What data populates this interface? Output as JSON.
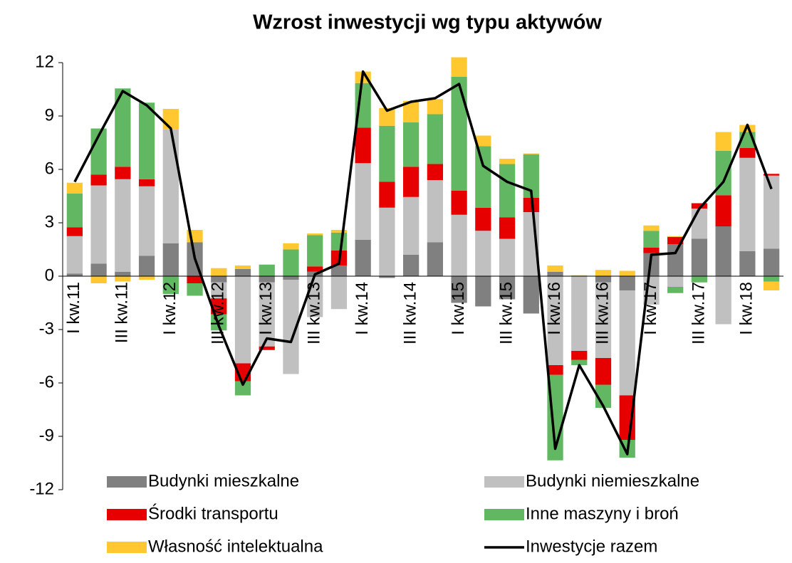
{
  "chart_data": {
    "type": "stacked_bar_line",
    "title": "Wzrost inwestycji wg typu aktywów",
    "categories": [
      "I kw.11",
      null,
      "III kw.11",
      null,
      "I kw.12",
      null,
      "III kw.12",
      null,
      "I kw.13",
      null,
      "III kw.13",
      null,
      "I kw.14",
      null,
      "III kw.14",
      null,
      "I kw.15",
      null,
      "III kw.15",
      null,
      "I kw.16",
      null,
      "III kw.16",
      null,
      "I kw.17",
      null,
      "III kw.17",
      null,
      "I kw.18",
      null
    ],
    "series": [
      {
        "name": "Budynki mieszkalne",
        "color": "#808080",
        "values": [
          0.15,
          0.7,
          0.25,
          1.15,
          1.85,
          1.9,
          -0.35,
          0.4,
          -0.35,
          -0.2,
          0.25,
          0.6,
          2.05,
          -0.1,
          1.2,
          1.9,
          -1.5,
          -1.7,
          -1.3,
          -2.1,
          0.25,
          0,
          -0.35,
          -0.8,
          1.3,
          1.8,
          2.1,
          2.8,
          1.4,
          1.55
        ]
      },
      {
        "name": "Budynki niemieszkalne",
        "color": "#c0c0c0",
        "values": [
          2.1,
          4.4,
          5.2,
          3.9,
          6.4,
          0,
          -0.9,
          -4.9,
          -3.6,
          -5.3,
          -2.3,
          -1.85,
          4.3,
          3.85,
          3.25,
          3.5,
          3.45,
          2.55,
          2.1,
          3.6,
          -5.0,
          -4.2,
          -4.25,
          -5.9,
          -1.6,
          -0.6,
          1.7,
          -2.7,
          5.25,
          4.1
        ]
      },
      {
        "name": "Środki transportu",
        "color": "#e60000",
        "values": [
          0.5,
          0.6,
          0.7,
          0.4,
          0,
          -0.4,
          -0.9,
          -1.0,
          -0.2,
          0,
          0.3,
          0.85,
          2.0,
          1.45,
          1.7,
          0.9,
          1.35,
          1.3,
          1.2,
          0.8,
          -0.55,
          -0.5,
          -1.5,
          -2.5,
          0.3,
          0.4,
          0.3,
          1.75,
          0.55,
          0.1
        ]
      },
      {
        "name": "Inne maszyny i broń",
        "color": "#62b862",
        "values": [
          1.9,
          2.6,
          4.4,
          4.3,
          -1.0,
          -0.7,
          -0.9,
          -0.8,
          0.65,
          1.5,
          1.75,
          1.0,
          2.5,
          3.15,
          2.5,
          2.8,
          6.4,
          3.45,
          3.0,
          2.45,
          -4.8,
          -0.3,
          -1.3,
          -1.0,
          0.95,
          -0.35,
          -0.35,
          2.5,
          0.9,
          -0.3
        ]
      },
      {
        "name": "Własność intelektualna",
        "color": "#ffc830",
        "values": [
          0.6,
          -0.4,
          -0.3,
          -0.2,
          1.15,
          0.7,
          0.45,
          0.2,
          0,
          0.35,
          0.1,
          0.15,
          0.65,
          1.0,
          1.2,
          0.85,
          1.1,
          0.6,
          0.3,
          0.05,
          0.35,
          0.05,
          0.35,
          0.3,
          0.3,
          0.05,
          0,
          1.05,
          0.4,
          -0.5
        ]
      }
    ],
    "line": {
      "name": "Inwestycje razem",
      "color": "#000000",
      "values": [
        5.3,
        7.9,
        10.4,
        9.6,
        8.3,
        1.0,
        -2.8,
        -6.1,
        -3.5,
        -3.7,
        0.1,
        0.7,
        11.5,
        9.3,
        9.8,
        10.0,
        10.8,
        6.2,
        5.3,
        4.8,
        -9.7,
        -5.0,
        -7.3,
        -10.0,
        1.2,
        1.3,
        3.8,
        5.3,
        8.5,
        4.9
      ]
    },
    "ylim": [
      -12,
      12
    ],
    "yticks": [
      -12,
      -9,
      -6,
      -3,
      0,
      3,
      6,
      9,
      12
    ]
  }
}
